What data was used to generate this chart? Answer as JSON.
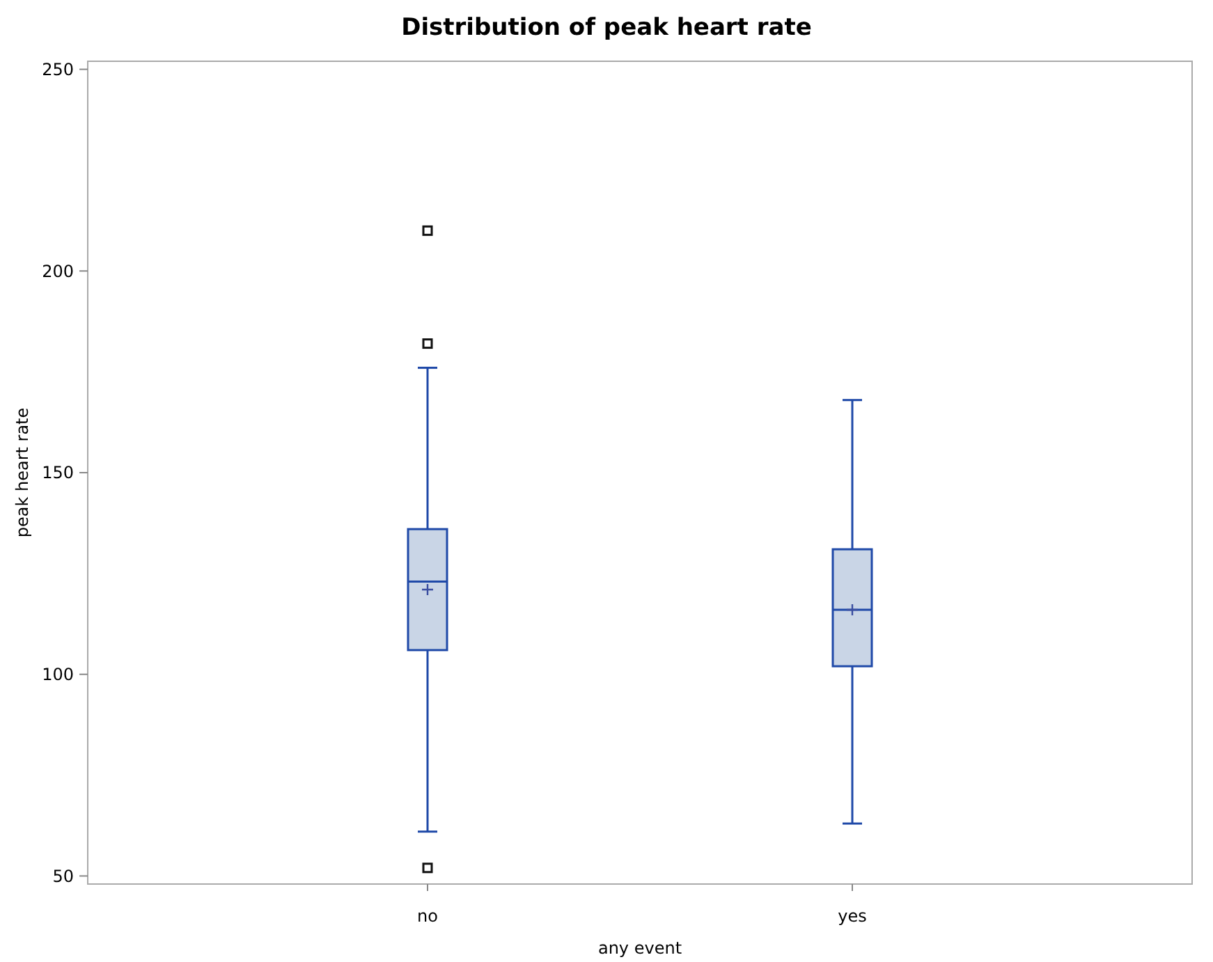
{
  "chart_data": {
    "type": "box",
    "title": "Distribution of peak heart rate",
    "xlabel": "any event",
    "ylabel": "peak heart rate",
    "categories": [
      "no",
      "yes"
    ],
    "boxes": [
      {
        "low": 61,
        "q1": 106,
        "median": 123,
        "q3": 136,
        "high": 176,
        "mean": 121,
        "outliers": [
          210,
          182,
          52
        ]
      },
      {
        "low": 63,
        "q1": 102,
        "median": 116,
        "q3": 131,
        "high": 168,
        "mean": 116
      }
    ],
    "color": "#1f49a8",
    "ylim": [
      48,
      252
    ],
    "yticks": [
      50,
      100,
      150,
      200,
      250
    ],
    "grid": false
  }
}
